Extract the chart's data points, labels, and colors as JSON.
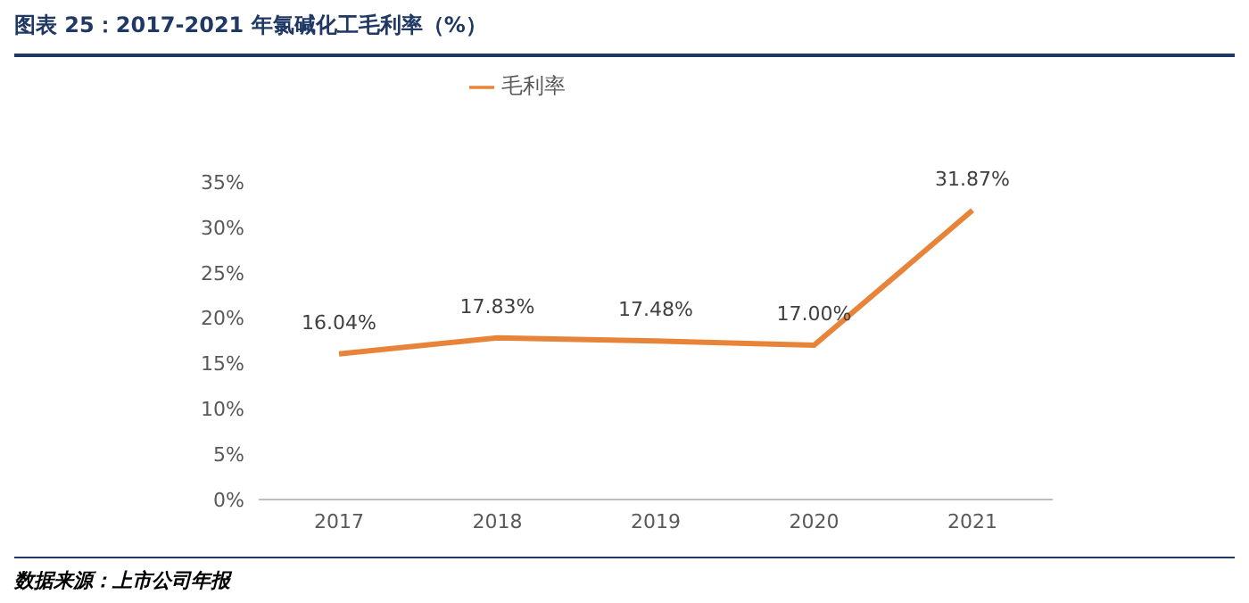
{
  "chart_data": {
    "type": "line",
    "title": "图表 25：2017-2021 年氯碱化工毛利率（%）",
    "categories": [
      "2017",
      "2018",
      "2019",
      "2020",
      "2021"
    ],
    "series": [
      {
        "name": "毛利率",
        "color": "#e8843a",
        "values": [
          16.04,
          17.83,
          17.48,
          17.0,
          31.87
        ],
        "value_labels": [
          "16.04%",
          "17.83%",
          "17.48%",
          "17.00%",
          "31.87%"
        ]
      }
    ],
    "ylim": [
      0,
      35
    ],
    "yticks": [
      {
        "value": 0,
        "label": "0%"
      },
      {
        "value": 5,
        "label": "5%"
      },
      {
        "value": 10,
        "label": "10%"
      },
      {
        "value": 15,
        "label": "15%"
      },
      {
        "value": 20,
        "label": "20%"
      },
      {
        "value": 25,
        "label": "25%"
      },
      {
        "value": 30,
        "label": "30%"
      },
      {
        "value": 35,
        "label": "35%"
      }
    ],
    "grid": false,
    "legend": "top",
    "marker": "none",
    "line_style": "solid",
    "annotations": [
      "数据来源：上市公司年报"
    ]
  }
}
